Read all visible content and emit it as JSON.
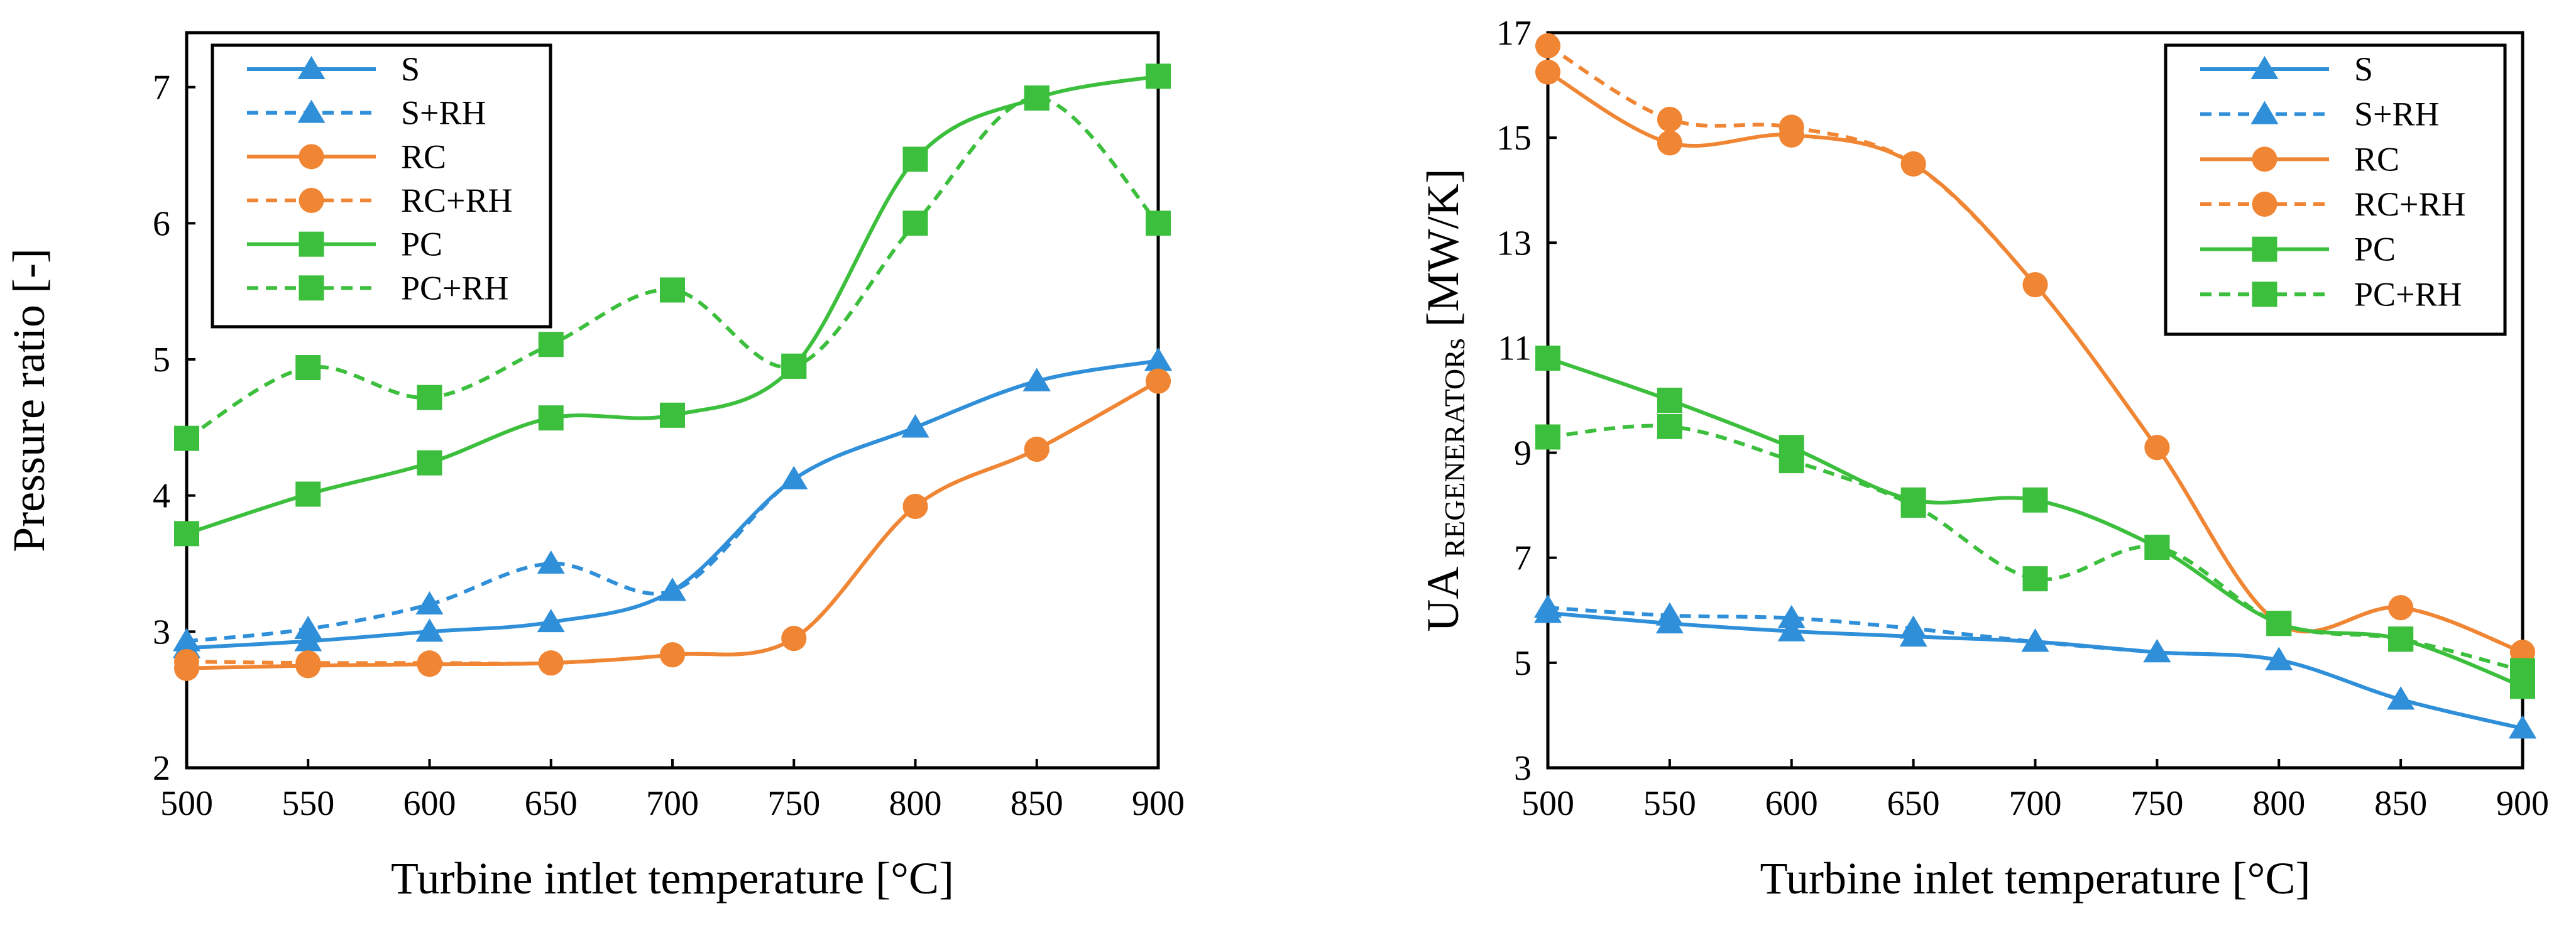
{
  "chart_data": [
    {
      "type": "line",
      "title": "",
      "xlabel": "Turbine intlet temperature [°C]",
      "ylabel": "Pressure ratio [-]",
      "xlim": [
        500,
        900
      ],
      "ylim": [
        2,
        7.4
      ],
      "x_ticks": [
        500,
        550,
        600,
        650,
        700,
        750,
        800,
        850,
        900
      ],
      "y_ticks": [
        2,
        3,
        4,
        5,
        6,
        7
      ],
      "grid": false,
      "legend_position": "top-left",
      "x": [
        500,
        550,
        600,
        650,
        700,
        750,
        800,
        850,
        900
      ],
      "series": [
        {
          "name": "S",
          "color": "#2f8fd8",
          "dash": "solid",
          "marker": "triangle",
          "values": [
            2.88,
            2.93,
            3.0,
            3.07,
            3.3,
            4.12,
            4.5,
            4.84,
            4.99
          ]
        },
        {
          "name": "S+RH",
          "color": "#2f8fd8",
          "dash": "dashed",
          "marker": "triangle",
          "values": [
            2.93,
            3.02,
            3.2,
            3.5,
            3.3,
            4.12,
            4.5,
            4.84,
            4.99
          ]
        },
        {
          "name": "RC",
          "color": "#f08533",
          "dash": "solid",
          "marker": "circle",
          "values": [
            2.73,
            2.75,
            2.76,
            2.77,
            2.83,
            2.95,
            3.92,
            4.34,
            4.84
          ]
        },
        {
          "name": "RC+RH",
          "color": "#f08533",
          "dash": "dashed",
          "marker": "circle",
          "values": [
            2.78,
            2.77,
            2.77,
            2.77,
            2.83,
            2.95,
            3.92,
            4.34,
            4.84
          ]
        },
        {
          "name": "PC",
          "color": "#3cbf3c",
          "dash": "solid",
          "marker": "square",
          "values": [
            3.72,
            4.01,
            4.24,
            4.57,
            4.59,
            4.95,
            6.47,
            6.92,
            7.08
          ]
        },
        {
          "name": "PC+RH",
          "color": "#3cbf3c",
          "dash": "dashed",
          "marker": "square",
          "values": [
            4.42,
            4.94,
            4.72,
            5.11,
            5.51,
            4.95,
            6.0,
            6.92,
            6.0
          ]
        }
      ]
    },
    {
      "type": "line",
      "title": "",
      "xlabel": "Turbine inlet temperature [°C]",
      "ylabel": "UA",
      "ylabel_sub": "REGENERATORs",
      "ylabel_unit": "[MW/K]",
      "xlim": [
        500,
        900
      ],
      "ylim": [
        3,
        17
      ],
      "x_ticks": [
        500,
        550,
        600,
        650,
        700,
        750,
        800,
        850,
        900
      ],
      "y_ticks": [
        3,
        5,
        7,
        9,
        11,
        13,
        15,
        17
      ],
      "grid": false,
      "legend_position": "top-right",
      "x": [
        500,
        550,
        600,
        650,
        700,
        750,
        800,
        850,
        900
      ],
      "series": [
        {
          "name": "S",
          "color": "#2f8fd8",
          "dash": "solid",
          "marker": "triangle",
          "values": [
            5.95,
            5.75,
            5.6,
            5.5,
            5.4,
            5.2,
            5.05,
            4.3,
            3.75
          ]
        },
        {
          "name": "S+RH",
          "color": "#2f8fd8",
          "dash": "dashed",
          "marker": "triangle",
          "values": [
            6.05,
            5.9,
            5.85,
            5.65,
            5.4,
            5.2,
            5.05,
            4.3,
            3.75
          ]
        },
        {
          "name": "RC",
          "color": "#f08533",
          "dash": "solid",
          "marker": "circle",
          "values": [
            16.25,
            14.9,
            15.05,
            14.5,
            12.2,
            9.1,
            5.75,
            6.05,
            5.2
          ]
        },
        {
          "name": "RC+RH",
          "color": "#f08533",
          "dash": "dashed",
          "marker": "circle",
          "values": [
            16.75,
            15.35,
            15.2,
            14.5,
            12.2,
            9.1,
            5.75,
            6.05,
            5.2
          ]
        },
        {
          "name": "PC",
          "color": "#3cbf3c",
          "dash": "solid",
          "marker": "square",
          "values": [
            10.8,
            10.0,
            9.1,
            8.1,
            8.1,
            7.2,
            5.75,
            5.45,
            4.55
          ]
        },
        {
          "name": "PC+RH",
          "color": "#3cbf3c",
          "dash": "dashed",
          "marker": "square",
          "values": [
            9.3,
            9.5,
            8.85,
            8.0,
            6.6,
            7.2,
            5.75,
            5.45,
            4.85
          ]
        }
      ]
    }
  ]
}
